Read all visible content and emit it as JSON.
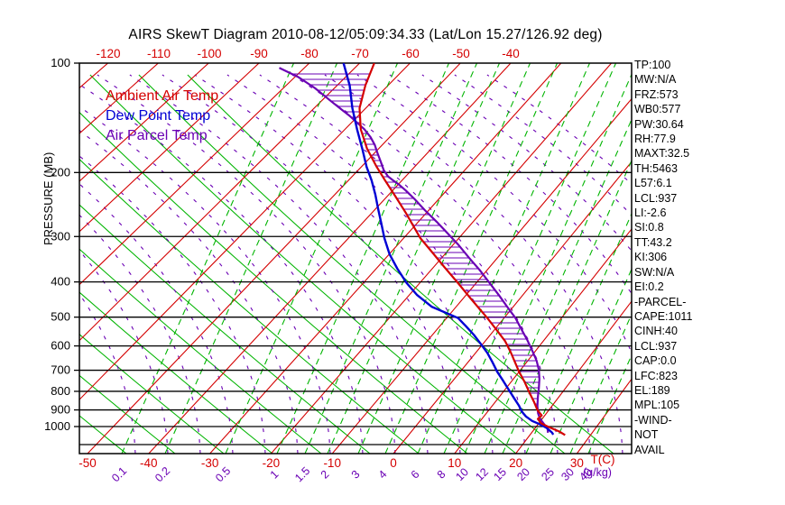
{
  "title": "AIRS SkewT Diagram 2010-08-12/05:09:34.33 (Lat/Lon 15.27/126.92 deg)",
  "colors": {
    "ambient": "#d40000",
    "dewpoint": "#0000d4",
    "parcel": "#6a00b4",
    "isotherm": "#d40000",
    "dry_adiabat": "#00b400",
    "mixing_ratio": "#00b400",
    "moist_adiabat": "#6a00b4",
    "frame": "#000000",
    "tick_red": "#d40000",
    "mixing_label": "#6a00b4"
  },
  "legend": {
    "items": [
      {
        "label": "Ambient Air Temp",
        "color_key": "ambient"
      },
      {
        "label": "Dew Point Temp",
        "color_key": "dewpoint"
      },
      {
        "label": "Air Parcel Temp",
        "color_key": "parcel"
      }
    ]
  },
  "left_axis": {
    "label": "PRESSURE (MB)",
    "ticks": [
      100,
      200,
      300,
      400,
      500,
      600,
      700,
      800,
      900,
      1000
    ]
  },
  "top_axis": {
    "ticks": [
      -120,
      -110,
      -100,
      -90,
      -80,
      -70,
      -60,
      -50,
      -40
    ]
  },
  "bottom_axis": {
    "temp_ticks": [
      -50,
      -40,
      -30,
      -20,
      -10,
      0,
      10,
      20,
      30
    ],
    "temp_axis_label": "T(C)",
    "mixing_ticks": [
      "0.1",
      "0.2",
      "0.5",
      "1",
      "1.5",
      "2",
      "3",
      "4",
      "6",
      "8",
      "10",
      "12",
      "15",
      "20",
      "25",
      "30",
      "40"
    ],
    "mixing_axis_label": "(g/kg)"
  },
  "side_panel": {
    "lines": [
      "TP:100",
      "MW:N/A",
      "FRZ:573",
      "WB0:577",
      "PW:30.64",
      "RH:77.9",
      "MAXT:32.5",
      "TH:5463",
      "L57:6.1",
      "LCL:937",
      "LI:-2.6",
      "SI:0.8",
      "TT:43.2",
      "KI:306",
      "SW:N/A",
      "EI:0.2",
      "-PARCEL-",
      "CAPE:1011",
      "CINH:40",
      "LCL:937",
      "CAP:0.0",
      "LFC:823",
      "EL:189",
      "MPL:105",
      "-WIND-",
      "NOT",
      "AVAIL"
    ]
  },
  "chart_data": {
    "type": "line",
    "title": "AIRS SkewT Diagram 2010-08-12/05:09:34.33",
    "xlabel": "Temperature (C), skewed",
    "ylabel": "Pressure (MB), log scale",
    "ylim": [
      100,
      1050
    ],
    "xlim_at_surface": [
      -50,
      40
    ],
    "grid": "skew-t log-p: red isotherms, green solid dry adiabats, green dashed saturation mixing ratio lines, purple dashed moist adiabats, black isobars every 100 mb",
    "isotherm_values_c": [
      -160,
      -150,
      -140,
      -130,
      -120,
      -110,
      -100,
      -90,
      -80,
      -70,
      -60,
      -50,
      -40,
      -30,
      -20,
      -10,
      0,
      10,
      20,
      30,
      40
    ],
    "mixing_ratio_values_gkg": [
      0.1,
      0.2,
      0.5,
      1,
      1.5,
      2,
      3,
      4,
      6,
      8,
      10,
      12,
      15,
      20,
      25,
      30,
      40
    ],
    "hatch": "horizontal purple hatching between Ambient Air Temp and Air Parcel Temp curves (CAPE/CINH area) from ~880 mb up to ~105 mb",
    "series": [
      {
        "name": "Ambient Air Temp",
        "color_key": "ambient",
        "units": [
          "mb",
          "C"
        ],
        "points": [
          [
            100,
            -67.1
          ],
          [
            115,
            -64.5
          ],
          [
            133,
            -61.2
          ],
          [
            152,
            -57.0
          ],
          [
            172,
            -52.2
          ],
          [
            193,
            -47.1
          ],
          [
            210,
            -43.2
          ],
          [
            233,
            -38.4
          ],
          [
            258,
            -33.8
          ],
          [
            303,
            -27.0
          ],
          [
            332,
            -22.5
          ],
          [
            364,
            -18.1
          ],
          [
            403,
            -13.2
          ],
          [
            447,
            -8.4
          ],
          [
            503,
            -2.9
          ],
          [
            541,
            0.3
          ],
          [
            583,
            3.5
          ],
          [
            626,
            6.0
          ],
          [
            671,
            8.3
          ],
          [
            707,
            10.0
          ],
          [
            752,
            12.2
          ],
          [
            809,
            14.6
          ],
          [
            856,
            16.5
          ],
          [
            901,
            18.1
          ],
          [
            932,
            19.5
          ],
          [
            953,
            19.3
          ],
          [
            980,
            20.4
          ],
          [
            1003,
            22.1
          ],
          [
            1032,
            24.4
          ],
          [
            1055,
            25.8
          ]
        ]
      },
      {
        "name": "Dew Point Temp",
        "color_key": "dewpoint",
        "units": [
          "mb",
          "C"
        ],
        "points": [
          [
            100,
            -73.2
          ],
          [
            115,
            -67.6
          ],
          [
            133,
            -62.6
          ],
          [
            152,
            -57.7
          ],
          [
            172,
            -53.1
          ],
          [
            193,
            -49.0
          ],
          [
            210,
            -45.7
          ],
          [
            230,
            -42.5
          ],
          [
            252,
            -39.5
          ],
          [
            276,
            -36.5
          ],
          [
            303,
            -33.5
          ],
          [
            336,
            -29.9
          ],
          [
            368,
            -26.2
          ],
          [
            403,
            -22.3
          ],
          [
            434,
            -18.7
          ],
          [
            468,
            -14.3
          ],
          [
            503,
            -8.0
          ],
          [
            530,
            -5.4
          ],
          [
            560,
            -2.8
          ],
          [
            592,
            -0.4
          ],
          [
            627,
            2.0
          ],
          [
            664,
            4.1
          ],
          [
            707,
            6.3
          ],
          [
            748,
            8.5
          ],
          [
            791,
            10.6
          ],
          [
            832,
            12.5
          ],
          [
            875,
            14.4
          ],
          [
            912,
            15.8
          ],
          [
            938,
            17.0
          ],
          [
            965,
            18.6
          ],
          [
            987,
            20.4
          ],
          [
            1009,
            21.9
          ],
          [
            1038,
            23.3
          ],
          [
            1052,
            23.8
          ]
        ]
      },
      {
        "name": "Air Parcel Temp",
        "color_key": "parcel",
        "units": [
          "mb",
          "C"
        ],
        "points": [
          [
            103,
            -85.0
          ],
          [
            109,
            -79.5
          ],
          [
            117,
            -73.9
          ],
          [
            128,
            -67.7
          ],
          [
            140,
            -61.5
          ],
          [
            152,
            -56.3
          ],
          [
            160,
            -53.6
          ],
          [
            168,
            -51.4
          ],
          [
            177,
            -49.4
          ],
          [
            187,
            -47.2
          ],
          [
            197,
            -45.2
          ],
          [
            205,
            -43.3
          ],
          [
            211,
            -41.4
          ],
          [
            216,
            -39.8
          ],
          [
            224,
            -37.6
          ],
          [
            237,
            -34.4
          ],
          [
            254,
            -30.7
          ],
          [
            273,
            -26.7
          ],
          [
            294,
            -22.8
          ],
          [
            317,
            -18.9
          ],
          [
            344,
            -15.0
          ],
          [
            372,
            -11.2
          ],
          [
            403,
            -7.6
          ],
          [
            436,
            -4.1
          ],
          [
            470,
            -0.9
          ],
          [
            503,
            2.0
          ],
          [
            540,
            4.6
          ],
          [
            578,
            7.1
          ],
          [
            620,
            9.5
          ],
          [
            659,
            11.5
          ],
          [
            698,
            13.1
          ],
          [
            740,
            14.4
          ],
          [
            784,
            15.5
          ],
          [
            830,
            16.5
          ],
          [
            879,
            17.6
          ],
          [
            919,
            18.6
          ],
          [
            951,
            19.6
          ],
          [
            980,
            20.8
          ],
          [
            1013,
            22.1
          ],
          [
            1040,
            22.7
          ]
        ]
      }
    ]
  }
}
